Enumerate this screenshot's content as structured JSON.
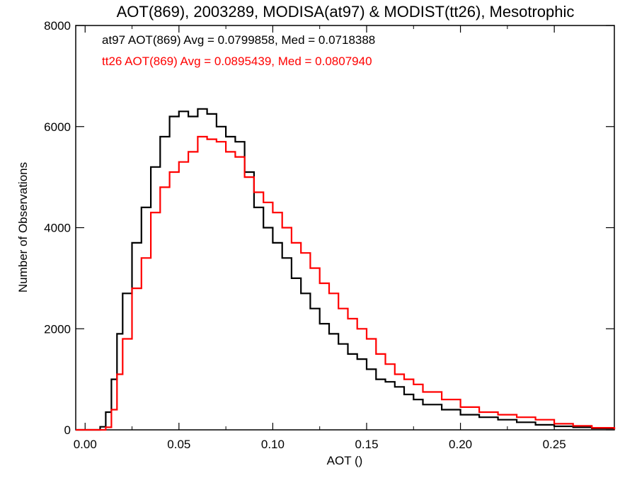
{
  "chart_data": {
    "type": "line",
    "title": "AOT(869), 2003289, MODISA(at97) & MODIST(tt26), Mesotrophic",
    "xlabel": "AOT ()",
    "ylabel": "Number of Observations",
    "xlim": [
      -0.005,
      0.282
    ],
    "ylim": [
      0,
      8000
    ],
    "xticks": [
      {
        "value": 0.0,
        "label": "0.00"
      },
      {
        "value": 0.05,
        "label": "0.05"
      },
      {
        "value": 0.1,
        "label": "0.10"
      },
      {
        "value": 0.15,
        "label": "0.15"
      },
      {
        "value": 0.2,
        "label": "0.20"
      },
      {
        "value": 0.25,
        "label": "0.25"
      }
    ],
    "yticks": [
      {
        "value": 0,
        "label": "0"
      },
      {
        "value": 2000,
        "label": "2000"
      },
      {
        "value": 4000,
        "label": "4000"
      },
      {
        "value": 6000,
        "label": "6000"
      },
      {
        "value": 8000,
        "label": "8000"
      }
    ],
    "grid": false,
    "step": true,
    "annotations": [
      {
        "text": "at97 AOT(869) Avg = 0.0799858, Med = 0.0718388",
        "color": "#000000"
      },
      {
        "text": "tt26 AOT(869) Avg = 0.0895439, Med = 0.0807940",
        "color": "#ff0000"
      }
    ],
    "x": [
      0.005,
      0.008,
      0.011,
      0.014,
      0.017,
      0.02,
      0.025,
      0.03,
      0.035,
      0.04,
      0.045,
      0.05,
      0.055,
      0.06,
      0.065,
      0.07,
      0.075,
      0.08,
      0.085,
      0.09,
      0.095,
      0.1,
      0.105,
      0.11,
      0.115,
      0.12,
      0.125,
      0.13,
      0.135,
      0.14,
      0.145,
      0.15,
      0.155,
      0.16,
      0.165,
      0.17,
      0.175,
      0.18,
      0.19,
      0.2,
      0.21,
      0.22,
      0.23,
      0.24,
      0.25,
      0.26,
      0.27,
      0.282
    ],
    "series": [
      {
        "color": "#000000",
        "values": [
          0,
          60,
          350,
          1000,
          1900,
          2700,
          3700,
          4400,
          5200,
          5800,
          6200,
          6300,
          6200,
          6350,
          6250,
          6000,
          5800,
          5700,
          5100,
          4400,
          4000,
          3700,
          3400,
          3000,
          2700,
          2400,
          2100,
          1900,
          1700,
          1500,
          1400,
          1200,
          1000,
          950,
          850,
          700,
          600,
          500,
          400,
          300,
          250,
          200,
          150,
          100,
          70,
          50,
          30,
          10
        ]
      },
      {
        "color": "#ff0000",
        "values": [
          0,
          0,
          50,
          400,
          1100,
          1800,
          2800,
          3400,
          4300,
          4800,
          5100,
          5300,
          5500,
          5800,
          5750,
          5700,
          5500,
          5400,
          5000,
          4700,
          4500,
          4300,
          4000,
          3700,
          3500,
          3200,
          2900,
          2700,
          2400,
          2200,
          2000,
          1800,
          1500,
          1300,
          1100,
          1000,
          900,
          750,
          600,
          450,
          350,
          300,
          250,
          200,
          120,
          80,
          40,
          10
        ]
      }
    ]
  }
}
